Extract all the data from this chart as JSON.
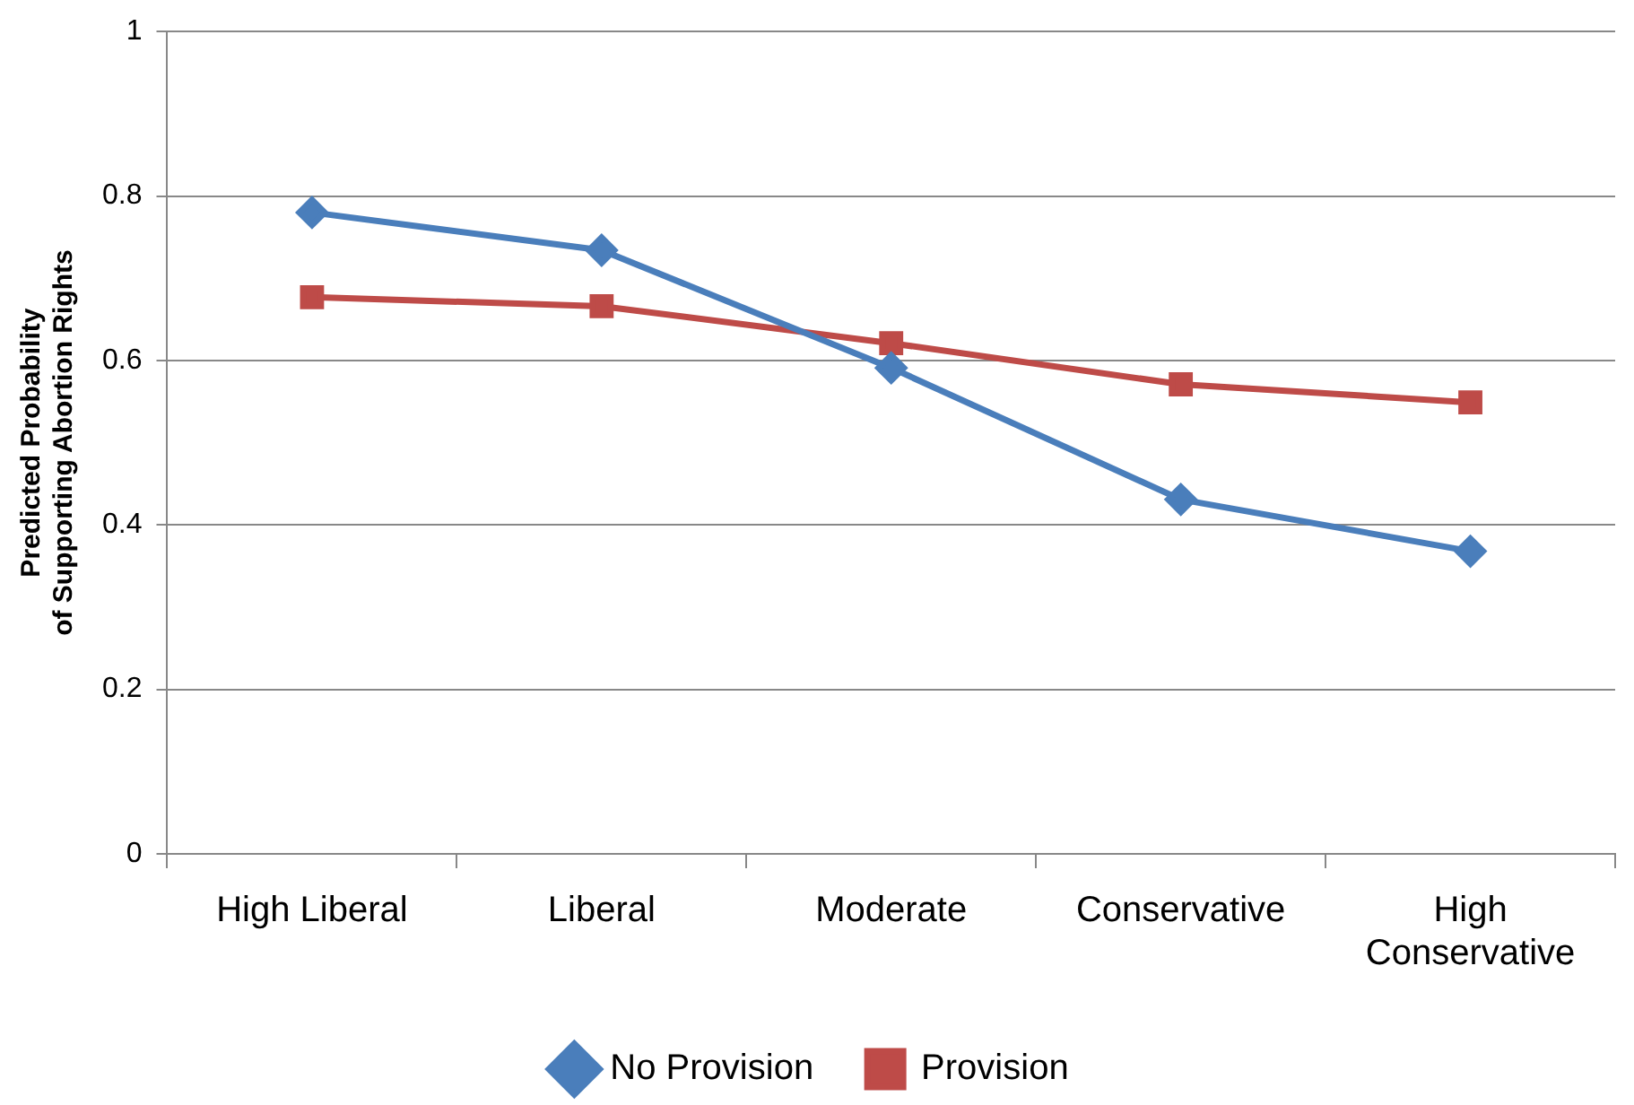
{
  "chart_data": {
    "type": "line",
    "ylabel": "Predicted Probability of Supporting Abortion Rights",
    "categories": [
      "High Liberal",
      "Liberal",
      "Moderate",
      "Conservative",
      "High Conservative"
    ],
    "series": [
      {
        "name": "No Provision",
        "color": "#4a7ebb",
        "marker": "diamond",
        "values": [
          0.78,
          0.734,
          0.591,
          0.431,
          0.368
        ]
      },
      {
        "name": "Provision",
        "color": "#be4b48",
        "marker": "square",
        "values": [
          0.677,
          0.666,
          0.621,
          0.571,
          0.549
        ]
      }
    ],
    "ylim": [
      0,
      1
    ],
    "yticks": [
      0,
      0.2,
      0.4,
      0.6,
      0.8,
      1
    ],
    "grid": "y",
    "legend": "bottom"
  }
}
